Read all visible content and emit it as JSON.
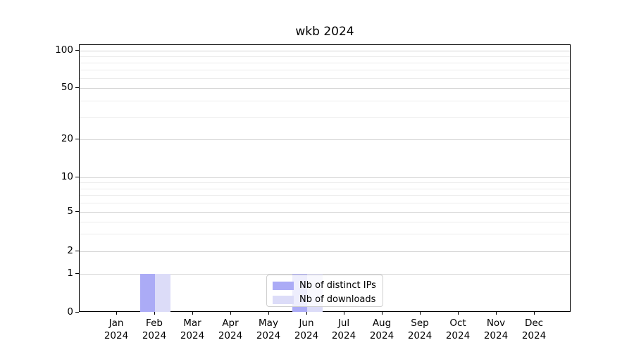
{
  "title": "wkb 2024",
  "legend": {
    "items": [
      {
        "label": "Nb of distinct IPs",
        "color": "#ababf6"
      },
      {
        "label": "Nb of downloads",
        "color": "#dcdcf8"
      }
    ]
  },
  "chart_data": {
    "type": "bar",
    "title": "wkb 2024",
    "categories": [
      "Jan 2024",
      "Feb 2024",
      "Mar 2024",
      "Apr 2024",
      "May 2024",
      "Jun 2024",
      "Jul 2024",
      "Aug 2024",
      "Sep 2024",
      "Oct 2024",
      "Nov 2024",
      "Dec 2024"
    ],
    "x_tick_top_lines": [
      "Jan",
      "Feb",
      "Mar",
      "Apr",
      "May",
      "Jun",
      "Jul",
      "Aug",
      "Sep",
      "Oct",
      "Nov",
      "Dec"
    ],
    "x_tick_bottom_line": "2024",
    "series": [
      {
        "name": "Nb of distinct IPs",
        "color": "#ababf6",
        "values": [
          0,
          1,
          0,
          0,
          0,
          1,
          0,
          0,
          0,
          0,
          0,
          0
        ]
      },
      {
        "name": "Nb of downloads",
        "color": "#dcdcf8",
        "values": [
          0,
          1,
          0,
          0,
          0,
          1,
          0,
          0,
          0,
          0,
          0,
          0
        ]
      }
    ],
    "xlabel": "",
    "ylabel": "",
    "ylim": [
      0,
      100
    ],
    "y_scale": "log-like with 0 baseline",
    "y_major_ticks": [
      0,
      1,
      2,
      5,
      10,
      20,
      50,
      100
    ],
    "y_minor_gridlines": [
      3,
      4,
      6,
      7,
      8,
      9,
      30,
      40,
      60,
      70,
      80,
      90
    ],
    "grid": "horizontal major + minor",
    "legend_position": "lower center"
  }
}
